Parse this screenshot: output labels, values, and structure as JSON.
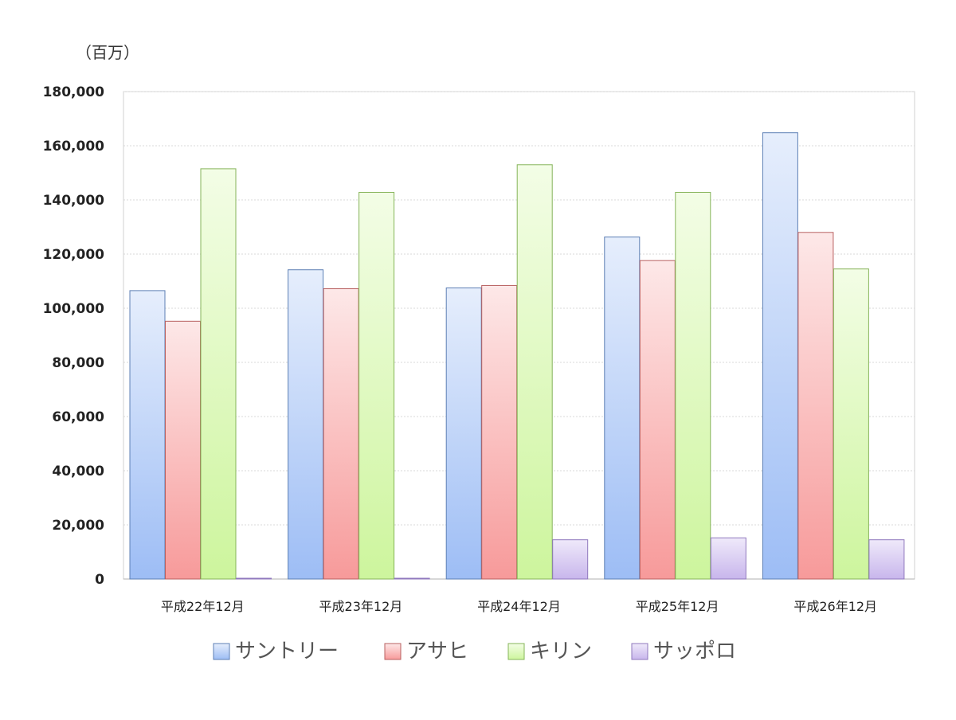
{
  "chart_data": {
    "type": "bar",
    "unit_label": "（百万）",
    "categories": [
      "平成22年12月",
      "平成23年12月",
      "平成24年12月",
      "平成25年12月",
      "平成26年12月"
    ],
    "series": [
      {
        "name": "サントリー",
        "values": [
          106500,
          114200,
          107500,
          126300,
          164800
        ],
        "color_top": "#e6eefc",
        "color_bottom": "#9dbdf5",
        "stroke": "#5d7fb4"
      },
      {
        "name": "アサヒ",
        "values": [
          95200,
          107200,
          108400,
          117600,
          128000
        ],
        "color_top": "#fde8e8",
        "color_bottom": "#f79a9a",
        "stroke": "#b86060"
      },
      {
        "name": "キリン",
        "values": [
          151500,
          142800,
          153000,
          142800,
          114500
        ],
        "color_top": "#f3fde6",
        "color_bottom": "#cdf59d",
        "stroke": "#86b45a"
      },
      {
        "name": "サッポロ",
        "values": [
          200,
          200,
          14500,
          15200,
          14500
        ],
        "color_top": "#efe9fa",
        "color_bottom": "#c8b6ec",
        "stroke": "#8f78bd"
      }
    ],
    "ylim": [
      0,
      180000
    ],
    "yticks": [
      0,
      20000,
      40000,
      60000,
      80000,
      100000,
      120000,
      140000,
      160000,
      180000
    ],
    "ytick_labels": [
      "0",
      "20,000",
      "40,000",
      "60,000",
      "80,000",
      "100,000",
      "120,000",
      "140,000",
      "160,000",
      "180,000"
    ],
    "grid": true,
    "legend_position": "bottom"
  }
}
